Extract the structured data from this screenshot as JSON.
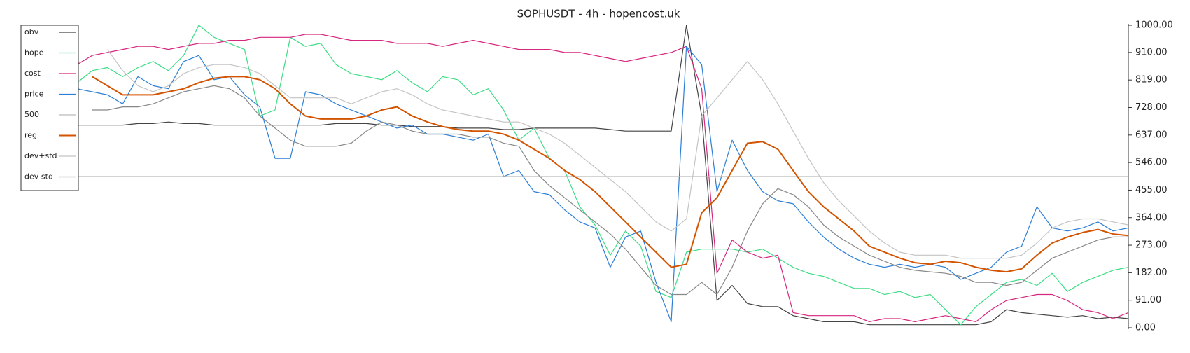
{
  "chart_data": {
    "type": "line",
    "title": "SOPHUSDT - 4h - hopencost.uk",
    "ylim": [
      0,
      1000
    ],
    "yticks": [
      {
        "value": 0,
        "label": "0.00"
      },
      {
        "value": 91,
        "label": "91.00"
      },
      {
        "value": 182,
        "label": "182.00"
      },
      {
        "value": 273,
        "label": "273.00"
      },
      {
        "value": 364,
        "label": "364.00"
      },
      {
        "value": 455,
        "label": "455.00"
      },
      {
        "value": 546,
        "label": "546.00"
      },
      {
        "value": 637,
        "label": "637.00"
      },
      {
        "value": 728,
        "label": "728.00"
      },
      {
        "value": 819,
        "label": "819.00"
      },
      {
        "value": 910,
        "label": "910.00"
      },
      {
        "value": 1000,
        "label": "1000.00"
      }
    ],
    "legend": "upper left",
    "series": [
      {
        "name": "obv",
        "color": "#444444",
        "values": [
          670,
          670,
          670,
          670,
          675,
          675,
          680,
          675,
          675,
          670,
          670,
          670,
          670,
          670,
          670,
          670,
          670,
          675,
          675,
          675,
          670,
          670,
          665,
          665,
          665,
          660,
          660,
          660,
          655,
          655,
          660,
          660,
          660,
          660,
          660,
          655,
          650,
          650,
          650,
          650,
          1000,
          700,
          90,
          140,
          80,
          70,
          70,
          40,
          30,
          20,
          20,
          20,
          10,
          10,
          10,
          10,
          10,
          10,
          10,
          10,
          20,
          60,
          50,
          45,
          40,
          35,
          40,
          30,
          35,
          30
        ]
      },
      {
        "name": "hope",
        "color": "#3ddc84",
        "values": [
          810,
          850,
          860,
          830,
          860,
          880,
          850,
          900,
          1000,
          960,
          940,
          920,
          700,
          720,
          960,
          930,
          940,
          870,
          840,
          830,
          820,
          850,
          810,
          780,
          830,
          820,
          770,
          790,
          720,
          620,
          660,
          560,
          520,
          400,
          340,
          240,
          320,
          270,
          120,
          100,
          250,
          260,
          260,
          260,
          250,
          260,
          230,
          200,
          180,
          170,
          150,
          130,
          130,
          110,
          120,
          100,
          110,
          60,
          10,
          70,
          110,
          150,
          160,
          140,
          180,
          120,
          150,
          170,
          190,
          200
        ]
      },
      {
        "name": "cost",
        "color": "#d6267e",
        "values": [
          870,
          900,
          910,
          920,
          930,
          930,
          920,
          930,
          940,
          940,
          950,
          950,
          960,
          960,
          960,
          970,
          970,
          960,
          950,
          950,
          950,
          940,
          940,
          940,
          930,
          940,
          950,
          940,
          930,
          920,
          920,
          920,
          910,
          910,
          900,
          890,
          880,
          890,
          900,
          910,
          930,
          790,
          180,
          290,
          250,
          230,
          240,
          50,
          40,
          40,
          40,
          40,
          20,
          30,
          30,
          20,
          30,
          40,
          30,
          20,
          60,
          90,
          100,
          110,
          110,
          90,
          60,
          50,
          30,
          50
        ]
      },
      {
        "name": "price",
        "color": "#2d7fd6",
        "values": [
          790,
          780,
          770,
          740,
          830,
          800,
          790,
          880,
          900,
          820,
          830,
          770,
          730,
          560,
          560,
          780,
          770,
          740,
          720,
          700,
          680,
          660,
          670,
          640,
          640,
          630,
          620,
          640,
          500,
          520,
          450,
          440,
          390,
          350,
          330,
          200,
          300,
          320,
          150,
          20,
          930,
          870,
          450,
          620,
          520,
          450,
          420,
          410,
          350,
          300,
          260,
          230,
          210,
          200,
          210,
          200,
          210,
          200,
          160,
          180,
          200,
          250,
          270,
          400,
          330,
          320,
          330,
          350,
          320,
          330
        ]
      },
      {
        "name": "500",
        "color": "#bbbbbb",
        "values": [
          500,
          500,
          500,
          500,
          500,
          500,
          500,
          500,
          500,
          500,
          500,
          500,
          500,
          500,
          500,
          500,
          500,
          500,
          500,
          500,
          500,
          500,
          500,
          500,
          500,
          500,
          500,
          500,
          500,
          500,
          500,
          500,
          500,
          500,
          500,
          500,
          500,
          500,
          500,
          500,
          500,
          500,
          500,
          500,
          500,
          500,
          500,
          500,
          500,
          500,
          500,
          500,
          500,
          500,
          500,
          500,
          500,
          500,
          500,
          500,
          500,
          500,
          500,
          500,
          500,
          500,
          500,
          500,
          500,
          500
        ]
      },
      {
        "name": "reg",
        "color": "#d35400",
        "width": 2,
        "values": [
          null,
          830,
          800,
          770,
          770,
          770,
          780,
          790,
          810,
          825,
          830,
          830,
          820,
          790,
          740,
          700,
          690,
          690,
          690,
          700,
          720,
          730,
          700,
          680,
          665,
          655,
          650,
          650,
          640,
          620,
          590,
          560,
          520,
          490,
          450,
          400,
          350,
          300,
          250,
          200,
          210,
          380,
          430,
          520,
          610,
          615,
          590,
          520,
          450,
          400,
          360,
          320,
          270,
          250,
          230,
          215,
          210,
          220,
          215,
          200,
          190,
          185,
          195,
          240,
          280,
          300,
          315,
          325,
          310,
          305
        ]
      },
      {
        "name": "dev+std",
        "color": "#c4c4c4",
        "values": [
          null,
          null,
          920,
          850,
          800,
          780,
          800,
          840,
          860,
          870,
          870,
          860,
          840,
          800,
          760,
          760,
          760,
          760,
          740,
          760,
          780,
          790,
          770,
          740,
          720,
          710,
          700,
          690,
          680,
          680,
          660,
          640,
          610,
          570,
          530,
          490,
          450,
          400,
          350,
          320,
          360,
          700,
          760,
          820,
          880,
          820,
          740,
          650,
          560,
          480,
          420,
          370,
          320,
          280,
          250,
          240,
          240,
          240,
          230,
          230,
          230,
          230,
          240,
          280,
          330,
          350,
          360,
          360,
          350,
          340
        ]
      },
      {
        "name": "dev-std",
        "color": "#888888",
        "values": [
          null,
          720,
          720,
          730,
          730,
          740,
          760,
          780,
          790,
          800,
          790,
          760,
          700,
          660,
          620,
          600,
          600,
          600,
          610,
          650,
          680,
          670,
          650,
          640,
          640,
          640,
          630,
          630,
          610,
          600,
          520,
          470,
          430,
          390,
          350,
          310,
          260,
          200,
          140,
          110,
          110,
          150,
          110,
          200,
          320,
          410,
          460,
          440,
          400,
          340,
          300,
          270,
          240,
          220,
          200,
          190,
          185,
          180,
          170,
          150,
          150,
          140,
          150,
          190,
          230,
          250,
          270,
          290,
          300,
          300
        ]
      }
    ]
  }
}
